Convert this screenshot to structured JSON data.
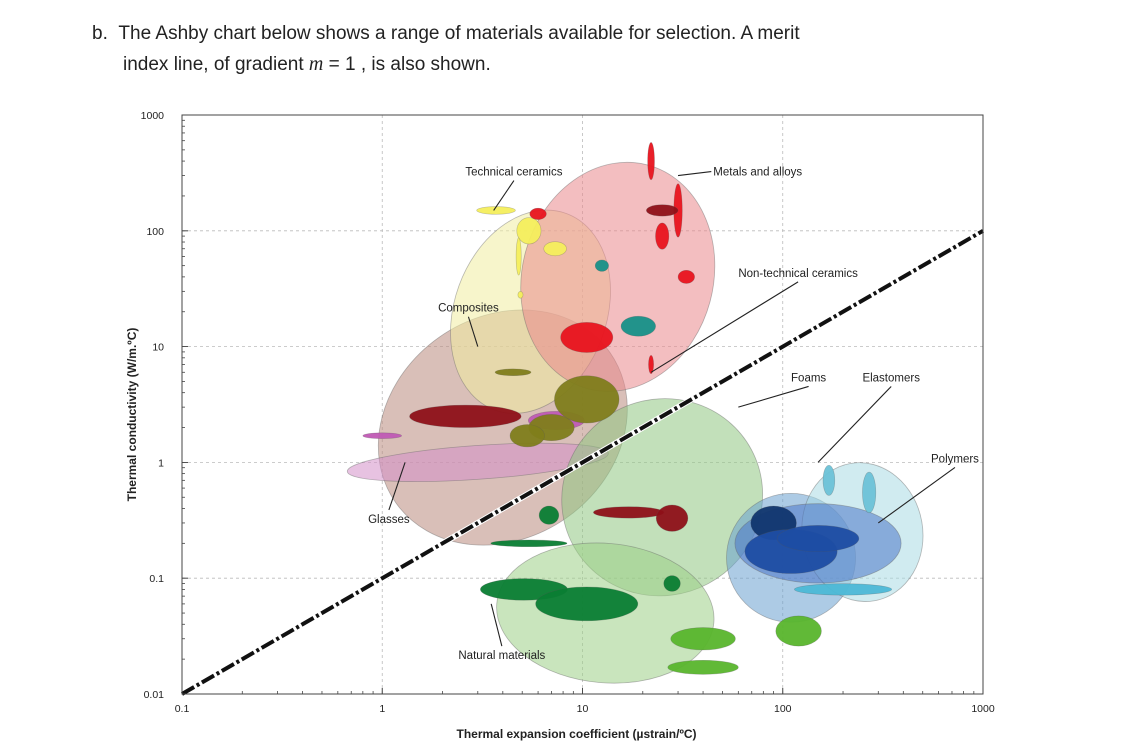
{
  "question": {
    "label": "b.",
    "line1": "The Ashby chart below shows a range of materials available for selection. A merit",
    "line2_before": "index line, of gradient ",
    "line2_var": "m",
    "line2_after": " = 1 , is also shown."
  },
  "chart_data": {
    "type": "scatter",
    "title": "",
    "xlabel": "Thermal expansion coefficient (µstrain/ºC)",
    "ylabel": "Thermal conductivity (W/m.ºC)",
    "xscale": "log",
    "yscale": "log",
    "xlim": [
      0.1,
      1000
    ],
    "ylim": [
      0.01,
      1000
    ],
    "xticks": [
      "0.1",
      "1",
      "10",
      "100",
      "1000"
    ],
    "yticks": [
      "0.01",
      "0.1",
      "1",
      "10",
      "100",
      "1000"
    ],
    "grid": true,
    "merit_line": {
      "gradient": 1,
      "from": [
        0.1,
        0.01
      ],
      "to": [
        1000,
        100
      ]
    },
    "annotations": [
      {
        "text": "Technical ceramics",
        "x": 2.6,
        "y": 300,
        "target": [
          3.6,
          150
        ]
      },
      {
        "text": "Metals and alloys",
        "x": 45,
        "y": 300,
        "target": [
          30,
          300
        ]
      },
      {
        "text": "Non-technical ceramics",
        "x": 60,
        "y": 40,
        "target": [
          22,
          6
        ]
      },
      {
        "text": "Composites",
        "x": 1.9,
        "y": 20,
        "target": [
          3,
          10
        ]
      },
      {
        "text": "Foams",
        "x": 110,
        "y": 5,
        "target": [
          60,
          3
        ]
      },
      {
        "text": "Elastomers",
        "x": 250,
        "y": 5,
        "target": [
          150,
          1
        ]
      },
      {
        "text": "Polymers",
        "x": 550,
        "y": 1,
        "target": [
          300,
          0.3
        ]
      },
      {
        "text": "Glasses",
        "x": 0.85,
        "y": 0.3,
        "target": [
          1.3,
          1
        ]
      },
      {
        "text": "Natural materials",
        "x": 2.4,
        "y": 0.02,
        "target": [
          3.5,
          0.06
        ]
      }
    ],
    "regions": [
      {
        "name": "Composites",
        "color": "#b98a7e",
        "cx": 4,
        "cy": 2,
        "rx": 4.5,
        "ry": 9,
        "angle": -35
      },
      {
        "name": "Technical ceramics",
        "color": "#f1eca0",
        "cx": 5.5,
        "cy": 20,
        "rx": 2.4,
        "ry": 8,
        "angle": 20
      },
      {
        "name": "Metals and alloys",
        "color": "#e9898c",
        "cx": 15,
        "cy": 40,
        "rx": 3,
        "ry": 10,
        "angle": 15
      },
      {
        "name": "Glasses",
        "color": "#d48fc9",
        "cx": 3,
        "cy": 1,
        "rx": 4.5,
        "ry": 1.4,
        "angle": -4
      },
      {
        "name": "Non-technical ceramics",
        "color": "#8fc681",
        "cx": 25,
        "cy": 0.5,
        "rx": 3.2,
        "ry": 7,
        "angle": -28
      },
      {
        "name": "Natural materials",
        "color": "#9ccf87",
        "cx": 13,
        "cy": 0.05,
        "rx": 3.5,
        "ry": 4,
        "angle": 5
      },
      {
        "name": "Foams",
        "color": "#6aa0d0",
        "cx": 110,
        "cy": 0.15,
        "rx": 2.1,
        "ry": 3.6,
        "angle": 0
      },
      {
        "name": "Elastomers",
        "color": "#a9dbe4",
        "cx": 250,
        "cy": 0.25,
        "rx": 2,
        "ry": 4,
        "angle": -10
      },
      {
        "name": "Polymers",
        "color": "#4a77c8",
        "cx": 150,
        "cy": 0.2,
        "rx": 2.6,
        "ry": 2.2,
        "angle": 0
      }
    ],
    "blobs": [
      {
        "color": "#f4ee5c",
        "cx": 3.7,
        "cy": 150,
        "rx": 1.25,
        "ry": 1.08,
        "angle": 0
      },
      {
        "color": "#f4ee5c",
        "cx": 5.4,
        "cy": 100,
        "rx": 1.15,
        "ry": 1.3,
        "angle": 0
      },
      {
        "color": "#f4ee5c",
        "cx": 7.3,
        "cy": 70,
        "rx": 1.14,
        "ry": 1.15,
        "angle": 0
      },
      {
        "color": "#f4ee5c",
        "cx": 4.8,
        "cy": 60,
        "rx": 1.03,
        "ry": 1.45,
        "angle": 0
      },
      {
        "color": "#f4ee5c",
        "cx": 4.9,
        "cy": 28,
        "rx": 1.03,
        "ry": 1.07,
        "angle": 0
      },
      {
        "color": "#e8131e",
        "cx": 6,
        "cy": 140,
        "rx": 1.1,
        "ry": 1.12,
        "angle": 0
      },
      {
        "color": "#e8131e",
        "cx": 22,
        "cy": 400,
        "rx": 1.04,
        "ry": 1.45,
        "angle": 0
      },
      {
        "color": "#e8131e",
        "cx": 25,
        "cy": 90,
        "rx": 1.08,
        "ry": 1.3,
        "angle": 0
      },
      {
        "color": "#e8131e",
        "cx": 30,
        "cy": 150,
        "rx": 1.05,
        "ry": 1.7,
        "angle": 0
      },
      {
        "color": "#e8131e",
        "cx": 33,
        "cy": 40,
        "rx": 1.1,
        "ry": 1.14,
        "angle": 0
      },
      {
        "color": "#e8131e",
        "cx": 10.5,
        "cy": 12,
        "rx": 1.35,
        "ry": 1.35,
        "angle": 0
      },
      {
        "color": "#e8131e",
        "cx": 22,
        "cy": 7,
        "rx": 1.03,
        "ry": 1.2,
        "angle": 0
      },
      {
        "color": "#8e1018",
        "cx": 25,
        "cy": 150,
        "rx": 1.2,
        "ry": 1.12,
        "angle": 0
      },
      {
        "color": "#169088",
        "cx": 19,
        "cy": 15,
        "rx": 1.22,
        "ry": 1.22,
        "angle": 0
      },
      {
        "color": "#169088",
        "cx": 12.5,
        "cy": 50,
        "rx": 1.08,
        "ry": 1.12,
        "angle": 0
      },
      {
        "color": "#8e1018",
        "cx": 2.6,
        "cy": 2.5,
        "rx": 1.9,
        "ry": 1.25,
        "angle": 0
      },
      {
        "color": "#c05ab4",
        "cx": 1.0,
        "cy": 1.7,
        "rx": 1.25,
        "ry": 1.06,
        "angle": 0
      },
      {
        "color": "#c05ab4",
        "cx": 7.4,
        "cy": 2.3,
        "rx": 1.38,
        "ry": 1.2,
        "angle": 0
      },
      {
        "color": "#7f7d1b",
        "cx": 7.0,
        "cy": 2.0,
        "rx": 1.3,
        "ry": 1.3,
        "angle": 0
      },
      {
        "color": "#7f7d1b",
        "cx": 10.5,
        "cy": 3.5,
        "rx": 1.45,
        "ry": 1.6,
        "angle": 0
      },
      {
        "color": "#7f7d1b",
        "cx": 4.5,
        "cy": 6.0,
        "rx": 1.23,
        "ry": 1.07,
        "angle": 0
      },
      {
        "color": "#7f7d1b",
        "cx": 5.3,
        "cy": 1.7,
        "rx": 1.22,
        "ry": 1.25,
        "angle": 0
      },
      {
        "color": "#8e1018",
        "cx": 17,
        "cy": 0.37,
        "rx": 1.5,
        "ry": 1.12,
        "angle": 0
      },
      {
        "color": "#8e1018",
        "cx": 28,
        "cy": 0.33,
        "rx": 1.2,
        "ry": 1.3,
        "angle": 0
      },
      {
        "color": "#0a7d33",
        "cx": 5.1,
        "cy": 0.08,
        "rx": 1.65,
        "ry": 1.24,
        "angle": 0
      },
      {
        "color": "#0a7d33",
        "cx": 10.5,
        "cy": 0.06,
        "rx": 1.8,
        "ry": 1.4,
        "angle": 0
      },
      {
        "color": "#0a7d33",
        "cx": 5.4,
        "cy": 0.2,
        "rx": 1.55,
        "ry": 1.07,
        "angle": 0
      },
      {
        "color": "#0a7d33",
        "cx": 6.8,
        "cy": 0.35,
        "rx": 1.12,
        "ry": 1.2,
        "angle": 0
      },
      {
        "color": "#0a7d33",
        "cx": 28,
        "cy": 0.09,
        "rx": 1.1,
        "ry": 1.17,
        "angle": 0
      },
      {
        "color": "#58b52c",
        "cx": 40,
        "cy": 0.03,
        "rx": 1.45,
        "ry": 1.25,
        "angle": 0
      },
      {
        "color": "#58b52c",
        "cx": 40,
        "cy": 0.017,
        "rx": 1.5,
        "ry": 1.15,
        "angle": 0
      },
      {
        "color": "#58b52c",
        "cx": 120,
        "cy": 0.035,
        "rx": 1.3,
        "ry": 1.35,
        "angle": 0
      },
      {
        "color": "#10356e",
        "cx": 90,
        "cy": 0.3,
        "rx": 1.3,
        "ry": 1.4,
        "angle": 0
      },
      {
        "color": "#1e4da3",
        "cx": 110,
        "cy": 0.17,
        "rx": 1.7,
        "ry": 1.55,
        "angle": 0
      },
      {
        "color": "#1e4da3",
        "cx": 150,
        "cy": 0.22,
        "rx": 1.6,
        "ry": 1.3,
        "angle": 0
      },
      {
        "color": "#4cb8d6",
        "cx": 200,
        "cy": 0.08,
        "rx": 1.75,
        "ry": 1.12,
        "angle": 0
      },
      {
        "color": "#6cc2d7",
        "cx": 270,
        "cy": 0.55,
        "rx": 1.08,
        "ry": 1.5,
        "angle": 0
      },
      {
        "color": "#6cc2d7",
        "cx": 170,
        "cy": 0.7,
        "rx": 1.07,
        "ry": 1.35,
        "angle": 0
      }
    ]
  }
}
